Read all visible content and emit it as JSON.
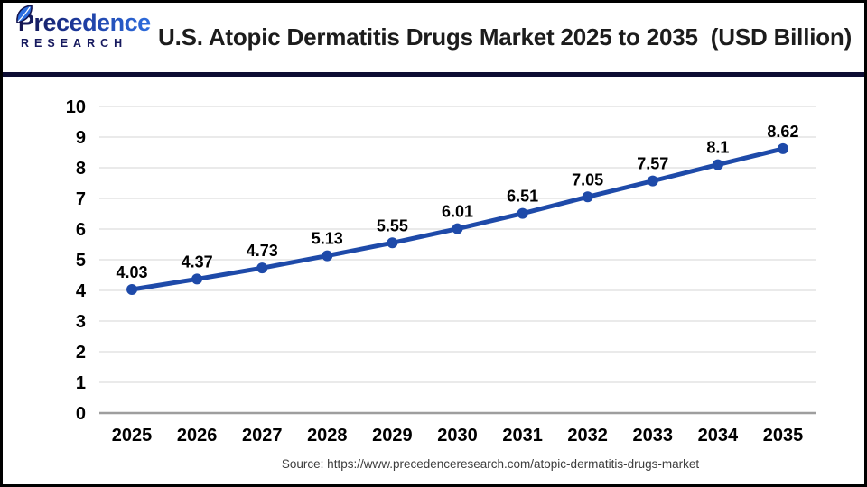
{
  "header": {
    "logo_line1": "Precedence",
    "logo_line2": "RESEARCH",
    "title": "U.S. Atopic Dermatitis Drugs Market 2025 to 2035  (USD Billion)"
  },
  "source_text": "Source: https://www.precedenceresearch.com/atopic-dermatitis-drugs-market",
  "colors": {
    "line": "#1e4aa9",
    "point": "#1e4aa9",
    "grid": "#e4e4e4",
    "axis_baseline": "#9e9e9e",
    "divider": "#0d0d33",
    "title_text": "#1c1c1c",
    "logo_navy": "#14144e",
    "logo_blue": "#2e6fe0"
  },
  "chart_data": {
    "type": "line",
    "title": "U.S. Atopic Dermatitis Drugs Market 2025 to 2035 (USD Billion)",
    "x": [
      "2025",
      "2026",
      "2027",
      "2028",
      "2029",
      "2030",
      "2031",
      "2032",
      "2033",
      "2034",
      "2035"
    ],
    "series": [
      {
        "values": [
          4.03,
          4.37,
          4.73,
          5.13,
          5.55,
          6.01,
          6.51,
          7.05,
          7.57,
          8.1,
          8.62
        ],
        "labels": [
          "4.03",
          "4.37",
          "4.73",
          "5.13",
          "5.55",
          "6.01",
          "6.51",
          "7.05",
          "7.57",
          "8.1",
          "8.62"
        ]
      }
    ],
    "xlabel": "",
    "ylabel": "",
    "ylim": [
      0,
      10
    ],
    "yticks": [
      0,
      1,
      2,
      3,
      4,
      5,
      6,
      7,
      8,
      9,
      10
    ],
    "grid": true,
    "legend_position": "none",
    "data_labels": true
  }
}
